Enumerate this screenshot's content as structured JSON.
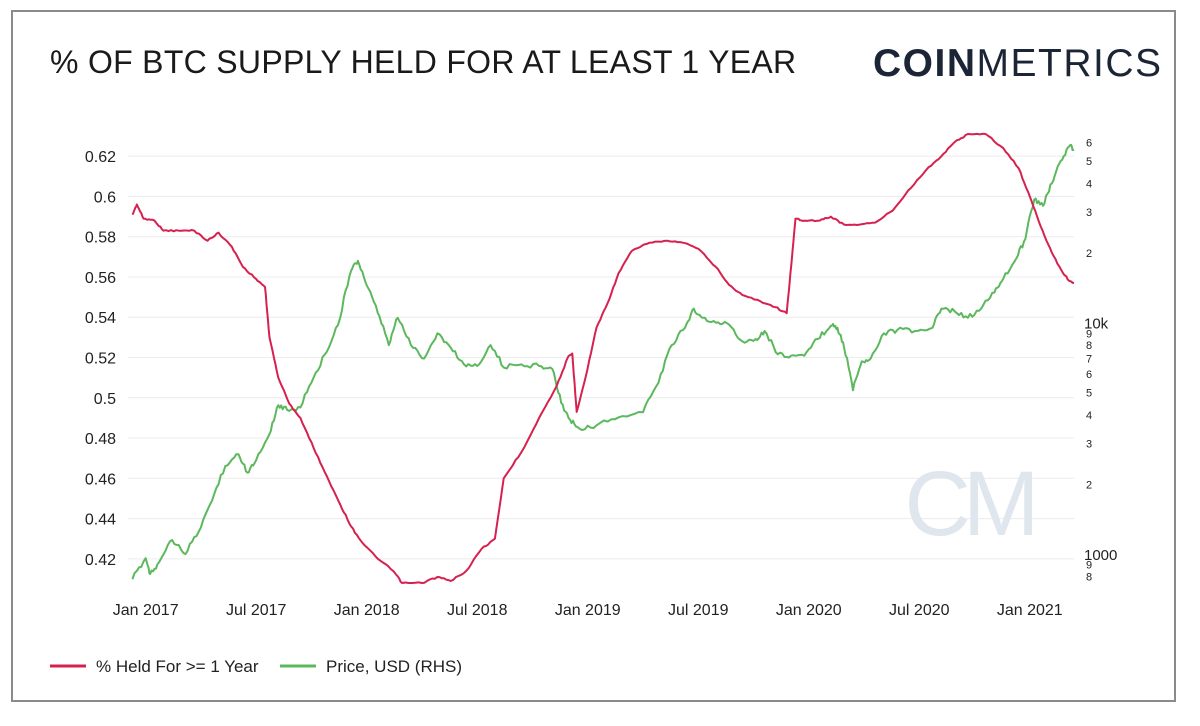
{
  "title": "% OF BTC SUPPLY HELD FOR AT LEAST 1 YEAR",
  "brand": {
    "bold": "COIN",
    "light": "METRICS",
    "watermark": "CM"
  },
  "colors": {
    "held": "#d6214f",
    "price": "#5cb85c",
    "grid": "#ececec",
    "text": "#222222"
  },
  "chart_data": {
    "type": "line",
    "title": "% OF BTC SUPPLY HELD FOR AT LEAST 1 YEAR",
    "x_tick_labels": [
      "Jan 2017",
      "Jul 2017",
      "Jan 2018",
      "Jul 2018",
      "Jan 2019",
      "Jul 2019",
      "Jan 2020",
      "Jul 2020",
      "Jan 2021"
    ],
    "x_tick_dates": [
      2017.0,
      2017.5,
      2018.0,
      2018.5,
      2019.0,
      2019.5,
      2020.0,
      2020.5,
      2021.0
    ],
    "x_range": [
      2016.92,
      2021.2
    ],
    "y_left": {
      "range": [
        0.408,
        0.633
      ],
      "ticks": [
        "0.42",
        "0.44",
        "0.46",
        "0.48",
        "0.5",
        "0.52",
        "0.54",
        "0.56",
        "0.58",
        "0.6",
        "0.62"
      ]
    },
    "y_right": {
      "scale": "log",
      "range": [
        750,
        68000
      ],
      "major_labels": [
        {
          "v": 1000,
          "t": "1000"
        },
        {
          "v": 10000,
          "t": "10k"
        }
      ],
      "minor_labels": [
        {
          "v": 800,
          "t": "8"
        },
        {
          "v": 900,
          "t": "9"
        },
        {
          "v": 2000,
          "t": "2"
        },
        {
          "v": 3000,
          "t": "3"
        },
        {
          "v": 4000,
          "t": "4"
        },
        {
          "v": 5000,
          "t": "5"
        },
        {
          "v": 6000,
          "t": "6"
        },
        {
          "v": 7000,
          "t": "7"
        },
        {
          "v": 8000,
          "t": "8"
        },
        {
          "v": 9000,
          "t": "9"
        },
        {
          "v": 20000,
          "t": "2"
        },
        {
          "v": 30000,
          "t": "3"
        },
        {
          "v": 40000,
          "t": "4"
        },
        {
          "v": 50000,
          "t": "5"
        },
        {
          "v": 60000,
          "t": "6"
        }
      ]
    },
    "series": [
      {
        "name": "% Held For >= 1 Year",
        "axis": "left",
        "points": [
          [
            2016.94,
            0.591
          ],
          [
            2016.96,
            0.596
          ],
          [
            2016.99,
            0.589
          ],
          [
            2017.04,
            0.588
          ],
          [
            2017.08,
            0.583
          ],
          [
            2017.15,
            0.583
          ],
          [
            2017.22,
            0.583
          ],
          [
            2017.28,
            0.578
          ],
          [
            2017.33,
            0.582
          ],
          [
            2017.39,
            0.575
          ],
          [
            2017.44,
            0.565
          ],
          [
            2017.5,
            0.559
          ],
          [
            2017.54,
            0.555
          ],
          [
            2017.56,
            0.53
          ],
          [
            2017.6,
            0.51
          ],
          [
            2017.65,
            0.497
          ],
          [
            2017.7,
            0.49
          ],
          [
            2017.76,
            0.475
          ],
          [
            2017.82,
            0.461
          ],
          [
            2017.88,
            0.447
          ],
          [
            2017.93,
            0.436
          ],
          [
            2017.98,
            0.428
          ],
          [
            2018.05,
            0.42
          ],
          [
            2018.12,
            0.414
          ],
          [
            2018.16,
            0.408
          ],
          [
            2018.25,
            0.408
          ],
          [
            2018.32,
            0.411
          ],
          [
            2018.38,
            0.409
          ],
          [
            2018.45,
            0.414
          ],
          [
            2018.52,
            0.425
          ],
          [
            2018.58,
            0.43
          ],
          [
            2018.62,
            0.46
          ],
          [
            2018.7,
            0.473
          ],
          [
            2018.78,
            0.49
          ],
          [
            2018.86,
            0.506
          ],
          [
            2018.91,
            0.52
          ],
          [
            2018.93,
            0.522
          ],
          [
            2018.95,
            0.493
          ],
          [
            2018.99,
            0.51
          ],
          [
            2019.04,
            0.535
          ],
          [
            2019.09,
            0.547
          ],
          [
            2019.14,
            0.562
          ],
          [
            2019.2,
            0.573
          ],
          [
            2019.28,
            0.577
          ],
          [
            2019.36,
            0.578
          ],
          [
            2019.43,
            0.577
          ],
          [
            2019.5,
            0.574
          ],
          [
            2019.58,
            0.565
          ],
          [
            2019.64,
            0.556
          ],
          [
            2019.7,
            0.551
          ],
          [
            2019.78,
            0.548
          ],
          [
            2019.85,
            0.545
          ],
          [
            2019.9,
            0.542
          ],
          [
            2019.92,
            0.565
          ],
          [
            2019.94,
            0.589
          ],
          [
            2019.98,
            0.588
          ],
          [
            2020.05,
            0.588
          ],
          [
            2020.1,
            0.59
          ],
          [
            2020.16,
            0.586
          ],
          [
            2020.23,
            0.586
          ],
          [
            2020.3,
            0.587
          ],
          [
            2020.38,
            0.593
          ],
          [
            2020.45,
            0.603
          ],
          [
            2020.53,
            0.613
          ],
          [
            2020.6,
            0.62
          ],
          [
            2020.66,
            0.627
          ],
          [
            2020.72,
            0.631
          ],
          [
            2020.8,
            0.631
          ],
          [
            2020.88,
            0.624
          ],
          [
            2020.95,
            0.614
          ],
          [
            2021.0,
            0.6
          ],
          [
            2021.05,
            0.585
          ],
          [
            2021.1,
            0.572
          ],
          [
            2021.15,
            0.562
          ],
          [
            2021.18,
            0.558
          ],
          [
            2021.2,
            0.557
          ]
        ]
      },
      {
        "name": "Price, USD (RHS)",
        "axis": "right",
        "points": [
          [
            2016.94,
            780
          ],
          [
            2017.0,
            960
          ],
          [
            2017.02,
            820
          ],
          [
            2017.06,
            920
          ],
          [
            2017.12,
            1150
          ],
          [
            2017.18,
            1000
          ],
          [
            2017.24,
            1250
          ],
          [
            2017.3,
            1700
          ],
          [
            2017.36,
            2400
          ],
          [
            2017.42,
            2700
          ],
          [
            2017.46,
            2250
          ],
          [
            2017.5,
            2550
          ],
          [
            2017.56,
            3300
          ],
          [
            2017.6,
            4400
          ],
          [
            2017.64,
            4200
          ],
          [
            2017.7,
            4300
          ],
          [
            2017.76,
            5800
          ],
          [
            2017.82,
            7500
          ],
          [
            2017.88,
            10500
          ],
          [
            2017.93,
            16800
          ],
          [
            2017.96,
            18500
          ],
          [
            2018.0,
            14500
          ],
          [
            2018.05,
            11000
          ],
          [
            2018.1,
            8000
          ],
          [
            2018.14,
            10500
          ],
          [
            2018.2,
            8000
          ],
          [
            2018.26,
            7000
          ],
          [
            2018.32,
            9000
          ],
          [
            2018.38,
            7800
          ],
          [
            2018.44,
            6600
          ],
          [
            2018.5,
            6500
          ],
          [
            2018.56,
            8000
          ],
          [
            2018.62,
            6400
          ],
          [
            2018.7,
            6600
          ],
          [
            2018.78,
            6500
          ],
          [
            2018.84,
            6300
          ],
          [
            2018.88,
            4500
          ],
          [
            2018.92,
            3800
          ],
          [
            2018.96,
            3500
          ],
          [
            2019.04,
            3600
          ],
          [
            2019.14,
            3900
          ],
          [
            2019.25,
            4100
          ],
          [
            2019.32,
            5500
          ],
          [
            2019.38,
            8000
          ],
          [
            2019.44,
            9500
          ],
          [
            2019.48,
            11500
          ],
          [
            2019.52,
            10500
          ],
          [
            2019.58,
            10000
          ],
          [
            2019.64,
            9800
          ],
          [
            2019.7,
            8300
          ],
          [
            2019.76,
            8500
          ],
          [
            2019.8,
            9200
          ],
          [
            2019.86,
            7300
          ],
          [
            2019.92,
            7200
          ],
          [
            2019.98,
            7200
          ],
          [
            2020.04,
            8500
          ],
          [
            2020.1,
            9700
          ],
          [
            2020.13,
            9500
          ],
          [
            2020.16,
            7800
          ],
          [
            2020.2,
            5100
          ],
          [
            2020.24,
            6800
          ],
          [
            2020.28,
            7000
          ],
          [
            2020.34,
            9000
          ],
          [
            2020.4,
            9300
          ],
          [
            2020.48,
            9200
          ],
          [
            2020.56,
            9500
          ],
          [
            2020.6,
            11500
          ],
          [
            2020.66,
            11200
          ],
          [
            2020.72,
            10500
          ],
          [
            2020.78,
            11500
          ],
          [
            2020.84,
            13500
          ],
          [
            2020.88,
            15500
          ],
          [
            2020.94,
            19000
          ],
          [
            2020.98,
            23000
          ],
          [
            2021.02,
            34000
          ],
          [
            2021.06,
            32000
          ],
          [
            2021.1,
            40000
          ],
          [
            2021.14,
            50000
          ],
          [
            2021.18,
            58000
          ],
          [
            2021.2,
            56000
          ]
        ]
      }
    ],
    "legend": [
      {
        "label": "% Held For >= 1 Year",
        "series": 0
      },
      {
        "label": "Price, USD (RHS)",
        "series": 1
      }
    ]
  }
}
